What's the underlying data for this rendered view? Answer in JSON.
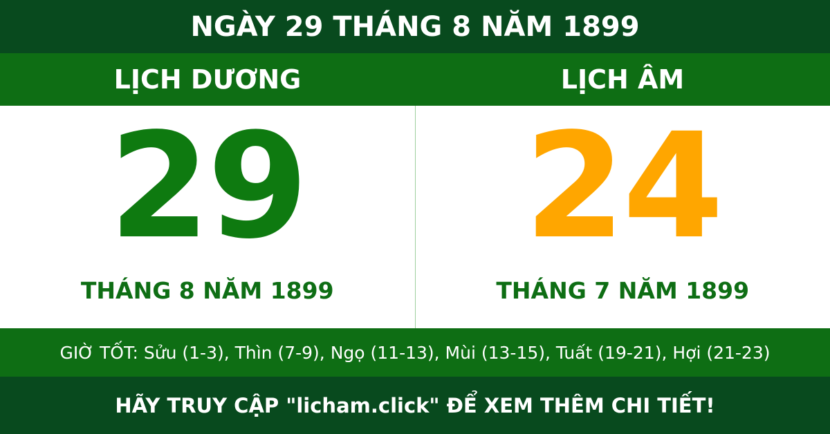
{
  "header": {
    "title": "NGÀY 29 THÁNG 8 NĂM 1899"
  },
  "solar": {
    "label": "LỊCH DƯƠNG",
    "day": "29",
    "month_year": "THÁNG 8 NĂM 1899"
  },
  "lunar": {
    "label": "LỊCH ÂM",
    "day": "24",
    "month_year": "THÁNG 7 NĂM 1899"
  },
  "good_hours": "GIỜ TỐT: Sửu (1-3), Thìn (7-9), Ngọ (11-13), Mùi (13-15), Tuất (19-21), Hợi (21-23)",
  "footer": "HÃY TRUY CẬP \"licham.click\" ĐỂ XEM THÊM CHI TIẾT!"
}
